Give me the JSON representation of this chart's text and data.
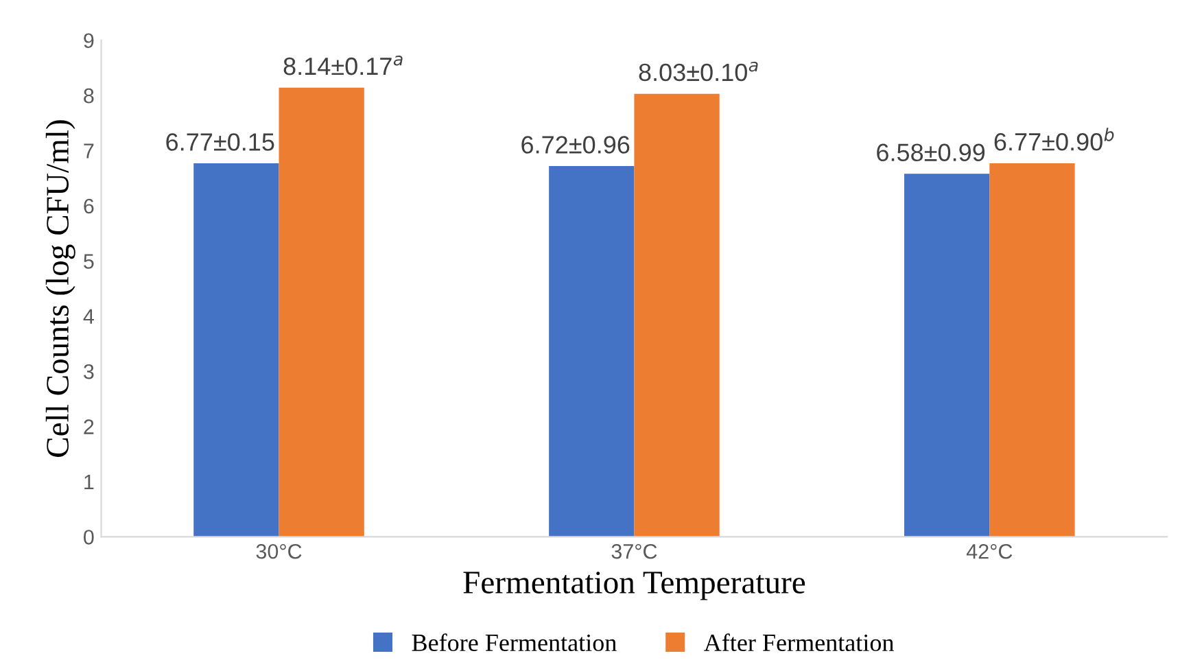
{
  "chart_data": {
    "type": "bar",
    "xlabel": "Fermentation Temperature",
    "ylabel": "Cell Counts (log CFU/ml)",
    "categories": [
      "30°C",
      "37°C",
      "42°C"
    ],
    "series": [
      {
        "name": "Before Fermentation",
        "color": "#4472c4",
        "values": [
          6.77,
          6.72,
          6.58
        ],
        "value_labels": [
          "6.77±0.15",
          "6.72±0.96",
          "6.58±0.99"
        ]
      },
      {
        "name": "After Fermentation",
        "color": "#ed7d31",
        "values": [
          8.14,
          8.03,
          6.77
        ],
        "value_labels": [
          "8.14±0.17$^{a}$",
          "8.03±0.10$^{a}$",
          "6.77±0.90$^{b}$"
        ]
      }
    ],
    "ylim": [
      0,
      9
    ],
    "yticks": [
      0,
      1,
      2,
      3,
      4,
      5,
      6,
      7,
      8,
      9
    ],
    "grid": false,
    "legend": "bottom"
  }
}
